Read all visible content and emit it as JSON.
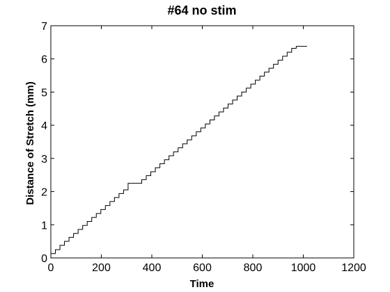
{
  "chart_data": {
    "type": "line",
    "title": "#64 no stim",
    "xlabel": "Time",
    "ylabel": "Distance of Stretch (mm)",
    "xlim": [
      0,
      1200
    ],
    "ylim": [
      0,
      7
    ],
    "xticks": [
      0,
      200,
      400,
      600,
      800,
      1000,
      1200
    ],
    "yticks": [
      0,
      1,
      2,
      3,
      4,
      5,
      6,
      7
    ],
    "grid": false,
    "line_color": "#000000",
    "step": true,
    "series": [
      {
        "step_end_x": 1015,
        "x": [
          0,
          18,
          36,
          54,
          72,
          90,
          108,
          126,
          144,
          162,
          180,
          198,
          216,
          234,
          252,
          270,
          288,
          306,
          324,
          360,
          378,
          396,
          414,
          432,
          450,
          468,
          486,
          504,
          522,
          540,
          558,
          576,
          594,
          612,
          630,
          648,
          666,
          684,
          702,
          720,
          738,
          756,
          774,
          792,
          810,
          828,
          846,
          864,
          882,
          900,
          918,
          936,
          954,
          972,
          990,
          1000
        ],
        "y": [
          0.13,
          0.25,
          0.38,
          0.5,
          0.62,
          0.74,
          0.86,
          0.98,
          1.1,
          1.22,
          1.34,
          1.46,
          1.58,
          1.7,
          1.82,
          1.94,
          2.05,
          2.25,
          2.25,
          2.36,
          2.48,
          2.6,
          2.72,
          2.84,
          2.96,
          3.08,
          3.2,
          3.32,
          3.44,
          3.56,
          3.68,
          3.8,
          3.92,
          4.04,
          4.16,
          4.28,
          4.4,
          4.52,
          4.64,
          4.76,
          4.88,
          5.0,
          5.12,
          5.24,
          5.36,
          5.48,
          5.6,
          5.72,
          5.84,
          5.96,
          6.08,
          6.2,
          6.32,
          6.38,
          6.38,
          6.38
        ]
      }
    ]
  }
}
